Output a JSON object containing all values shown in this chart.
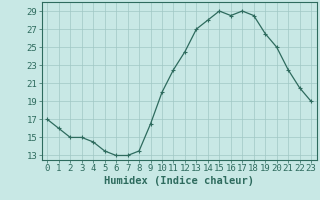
{
  "x": [
    0,
    1,
    2,
    3,
    4,
    5,
    6,
    7,
    8,
    9,
    10,
    11,
    12,
    13,
    14,
    15,
    16,
    17,
    18,
    19,
    20,
    21,
    22,
    23
  ],
  "y": [
    17,
    16,
    15,
    15,
    14.5,
    13.5,
    13,
    13,
    13.5,
    16.5,
    20,
    22.5,
    24.5,
    27,
    28,
    29,
    28.5,
    29,
    28.5,
    26.5,
    25,
    22.5,
    20.5,
    19
  ],
  "line_color": "#2e6b5e",
  "marker": "+",
  "marker_color": "#2e6b5e",
  "bg_color": "#c8e8e5",
  "grid_color": "#a0c8c5",
  "axis_color": "#2e6b5e",
  "spine_color": "#2e6b5e",
  "xlabel": "Humidex (Indice chaleur)",
  "xlim": [
    -0.5,
    23.5
  ],
  "ylim": [
    12.5,
    30
  ],
  "yticks": [
    13,
    15,
    17,
    19,
    21,
    23,
    25,
    27,
    29
  ],
  "xticks": [
    0,
    1,
    2,
    3,
    4,
    5,
    6,
    7,
    8,
    9,
    10,
    11,
    12,
    13,
    14,
    15,
    16,
    17,
    18,
    19,
    20,
    21,
    22,
    23
  ],
  "tick_label_fontsize": 6.5,
  "xlabel_fontsize": 7.5,
  "linewidth": 0.9,
  "markersize": 3.5
}
